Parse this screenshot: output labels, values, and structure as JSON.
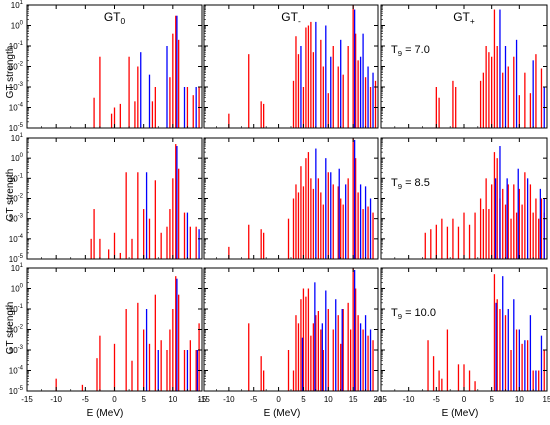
{
  "figure": {
    "ylabel": "GT strength",
    "xlabel": "E (MeV)",
    "column_titles": [
      {
        "base": "GT",
        "sub": "0"
      },
      {
        "base": "GT",
        "sub": "-"
      },
      {
        "base": "GT",
        "sub": "+"
      }
    ],
    "row_labels": [
      {
        "base": "T",
        "sub": "9",
        "rest": " = 7.0"
      },
      {
        "base": "T",
        "sub": "9",
        "rest": " = 8.5"
      },
      {
        "base": "T",
        "sub": "9",
        "rest": " = 10.0"
      }
    ],
    "y_tick_labels": [
      {
        "base": "10",
        "exp": "-5"
      },
      {
        "base": "10",
        "exp": "-4"
      },
      {
        "base": "10",
        "exp": "-3"
      },
      {
        "base": "10",
        "exp": "-2"
      },
      {
        "base": "10",
        "exp": "-1"
      },
      {
        "base": "10",
        "exp": "0"
      },
      {
        "base": "10",
        "exp": "1"
      }
    ],
    "x_tick_labels": [
      [
        "-15",
        "-10",
        "-5",
        "0",
        "5",
        "10",
        "15"
      ],
      [
        "-15",
        "-10",
        "-5",
        "0",
        "5",
        "10",
        "15",
        "20"
      ],
      [
        "-15",
        "-10",
        "-5",
        "0",
        "5",
        "10",
        "15"
      ]
    ],
    "colors": {
      "red": "#ff0000",
      "blue": "#0000ff",
      "axis": "#000000"
    }
  },
  "chart_data": [
    {
      "type": "bar",
      "panel": "GT0 T9=7.0",
      "xlim": [
        -15,
        15
      ],
      "ylim": [
        1e-05,
        10
      ],
      "yscale": "log",
      "red": [
        [
          -3.5,
          0.0003
        ],
        [
          -2.5,
          0.03
        ],
        [
          -0.5,
          5e-05
        ],
        [
          0,
          0.0001
        ],
        [
          1,
          0.00015
        ],
        [
          2.5,
          0.03
        ],
        [
          3.5,
          0.0002
        ],
        [
          4,
          0.01
        ],
        [
          6.5,
          0.0002
        ],
        [
          7,
          0.001
        ],
        [
          9.5,
          0.003
        ],
        [
          10,
          0.4
        ],
        [
          10.5,
          3
        ],
        [
          11,
          0.2
        ],
        [
          12.5,
          0.001
        ],
        [
          13.5,
          0.0004
        ],
        [
          14.5,
          0.001
        ]
      ],
      "blue": [
        [
          4.5,
          0.05
        ],
        [
          6,
          0.004
        ],
        [
          9,
          0.1
        ],
        [
          10.7,
          3
        ],
        [
          12,
          0.001
        ],
        [
          14,
          0.001
        ]
      ]
    },
    {
      "type": "bar",
      "panel": "GT- T9=7.0",
      "xlim": [
        -15,
        20
      ],
      "ylim": [
        1e-05,
        10
      ],
      "yscale": "log",
      "red": [
        [
          -10,
          5e-05
        ],
        [
          -6,
          0.04
        ],
        [
          -3.5,
          0.0002
        ],
        [
          -3,
          0.00015
        ],
        [
          3,
          0.002
        ],
        [
          3.5,
          0.3
        ],
        [
          4,
          0.04
        ],
        [
          5,
          0.001
        ],
        [
          5.5,
          0.8
        ],
        [
          6,
          1
        ],
        [
          6.5,
          1.5
        ],
        [
          7,
          0.05
        ],
        [
          8.5,
          0.2
        ],
        [
          9,
          0.01
        ],
        [
          10,
          0.0005
        ],
        [
          11,
          0.1
        ],
        [
          12,
          0.01
        ],
        [
          13,
          0.004
        ],
        [
          14,
          0.1
        ],
        [
          15,
          10
        ],
        [
          15.5,
          0.4
        ],
        [
          16,
          0.02
        ],
        [
          17.5,
          0.003
        ],
        [
          18.5,
          0.001
        ],
        [
          19.5,
          0.002
        ]
      ],
      "blue": [
        [
          4.5,
          0.1
        ],
        [
          7.5,
          1.5
        ],
        [
          9.5,
          1
        ],
        [
          10.5,
          0.03
        ],
        [
          12.5,
          0.2
        ],
        [
          15.3,
          6
        ],
        [
          16.5,
          0.03
        ],
        [
          17,
          0.4
        ],
        [
          18,
          0.01
        ],
        [
          19,
          0.005
        ]
      ]
    },
    {
      "type": "bar",
      "panel": "GT+ T9=7.0",
      "xlim": [
        -15,
        15
      ],
      "ylim": [
        1e-05,
        10
      ],
      "yscale": "log",
      "red": [
        [
          -5,
          0.001
        ],
        [
          -4.5,
          0.0003
        ],
        [
          -2,
          0.002
        ],
        [
          -1.5,
          0.001
        ],
        [
          3,
          0.002
        ],
        [
          3.5,
          0.005
        ],
        [
          4,
          0.1
        ],
        [
          4.5,
          0.05
        ],
        [
          5,
          0.03
        ],
        [
          5.5,
          6
        ],
        [
          6,
          0.1
        ],
        [
          7,
          0.005
        ],
        [
          8,
          0.01
        ],
        [
          9,
          0.03
        ],
        [
          10,
          0.0004
        ],
        [
          11,
          0.005
        ],
        [
          12,
          0.0005
        ],
        [
          13,
          0.04
        ],
        [
          14,
          0.008
        ]
      ],
      "blue": [
        [
          6.5,
          6
        ],
        [
          7.5,
          0.1
        ],
        [
          9.5,
          0.2
        ],
        [
          12.5,
          0.02
        ],
        [
          14.5,
          0.001
        ]
      ]
    },
    {
      "type": "bar",
      "panel": "GT0 T9=8.5",
      "xlim": [
        -15,
        15
      ],
      "ylim": [
        1e-05,
        10
      ],
      "yscale": "log",
      "red": [
        [
          -4,
          0.0001
        ],
        [
          -3.5,
          0.003
        ],
        [
          -2.5,
          0.0001
        ],
        [
          -1,
          3e-05
        ],
        [
          0,
          0.0002
        ],
        [
          1,
          2e-05
        ],
        [
          2,
          0.2
        ],
        [
          3,
          0.0001
        ],
        [
          4,
          0.2
        ],
        [
          5,
          0.003
        ],
        [
          6,
          0.001
        ],
        [
          7,
          0.08
        ],
        [
          8,
          0.0002
        ],
        [
          9,
          0.0004
        ],
        [
          9.5,
          0.003
        ],
        [
          10,
          0.1
        ],
        [
          10.5,
          5
        ],
        [
          11,
          0.3
        ],
        [
          12,
          0.002
        ],
        [
          13,
          0.0004
        ],
        [
          14,
          0.0004
        ]
      ],
      "blue": [
        [
          5.5,
          0.2
        ],
        [
          10.7,
          4
        ],
        [
          12.5,
          0.002
        ],
        [
          14.5,
          0.0003
        ]
      ]
    },
    {
      "type": "bar",
      "panel": "GT- T9=8.5",
      "xlim": [
        -15,
        20
      ],
      "ylim": [
        1e-05,
        10
      ],
      "yscale": "log",
      "red": [
        [
          -10,
          4e-05
        ],
        [
          -6,
          0.0005
        ],
        [
          -3.5,
          0.0003
        ],
        [
          -3,
          0.0002
        ],
        [
          2,
          0.001
        ],
        [
          3,
          0.01
        ],
        [
          3.5,
          0.05
        ],
        [
          4,
          0.02
        ],
        [
          4.5,
          0.4
        ],
        [
          5,
          0.04
        ],
        [
          5.5,
          1
        ],
        [
          6,
          2
        ],
        [
          6.5,
          0.1
        ],
        [
          7,
          0.03
        ],
        [
          8,
          0.1
        ],
        [
          8.5,
          0.02
        ],
        [
          9,
          0.005
        ],
        [
          10,
          0.2
        ],
        [
          11,
          0.05
        ],
        [
          12,
          0.04
        ],
        [
          12.5,
          0.01
        ],
        [
          13,
          0.005
        ],
        [
          14,
          0.1
        ],
        [
          15,
          10
        ],
        [
          15.5,
          1
        ],
        [
          16,
          0.02
        ],
        [
          17,
          0.003
        ],
        [
          18,
          0.004
        ],
        [
          19,
          0.002
        ]
      ],
      "blue": [
        [
          7.5,
          3
        ],
        [
          9.5,
          1
        ],
        [
          10.5,
          0.2
        ],
        [
          12.2,
          0.3
        ],
        [
          13.5,
          0.05
        ],
        [
          15.3,
          8
        ],
        [
          16.5,
          0.05
        ],
        [
          17.5,
          0.04
        ],
        [
          18.5,
          0.01
        ]
      ]
    },
    {
      "type": "bar",
      "panel": "GT+ T9=8.5",
      "xlim": [
        -15,
        15
      ],
      "ylim": [
        1e-05,
        10
      ],
      "yscale": "log",
      "red": [
        [
          -7,
          0.0002
        ],
        [
          -6,
          0.0003
        ],
        [
          -5,
          0.0005
        ],
        [
          -4,
          0.001
        ],
        [
          -3,
          0.0004
        ],
        [
          -2,
          0.001
        ],
        [
          -1,
          0.0004
        ],
        [
          0,
          0.002
        ],
        [
          1,
          0.0005
        ],
        [
          2,
          0.002
        ],
        [
          3,
          0.01
        ],
        [
          3.5,
          0.003
        ],
        [
          4,
          0.1
        ],
        [
          4.5,
          0.003
        ],
        [
          5,
          0.05
        ],
        [
          5.5,
          2
        ],
        [
          6,
          1
        ],
        [
          6.5,
          0.01
        ],
        [
          7,
          0.03
        ],
        [
          7.5,
          0.005
        ],
        [
          8,
          0.05
        ],
        [
          8.5,
          0.001
        ],
        [
          9,
          0.05
        ],
        [
          9.5,
          0.002
        ],
        [
          10,
          0.03
        ],
        [
          10.5,
          0.005
        ],
        [
          11,
          0.2
        ],
        [
          12,
          0.05
        ],
        [
          12.5,
          0.002
        ],
        [
          13,
          0.01
        ],
        [
          13.5,
          0.001
        ],
        [
          14,
          0.01
        ],
        [
          14.5,
          0.002
        ]
      ],
      "blue": [
        [
          5.7,
          0.1
        ],
        [
          6.5,
          4
        ],
        [
          7.8,
          0.1
        ],
        [
          9.8,
          0.3
        ],
        [
          11.5,
          0.1
        ],
        [
          13.8,
          0.03
        ],
        [
          14.5,
          0.01
        ]
      ]
    },
    {
      "type": "bar",
      "panel": "GT0 T9=10.0",
      "xlim": [
        -15,
        15
      ],
      "ylim": [
        1e-05,
        10
      ],
      "yscale": "log",
      "red": [
        [
          -10,
          4e-05
        ],
        [
          -5.5,
          2e-05
        ],
        [
          -3,
          0.0004
        ],
        [
          -2.5,
          0.005
        ],
        [
          0,
          0.002
        ],
        [
          2,
          0.1
        ],
        [
          3,
          0.0003
        ],
        [
          4,
          0.2
        ],
        [
          5,
          0.01
        ],
        [
          6,
          0.002
        ],
        [
          7,
          0.5
        ],
        [
          8,
          0.003
        ],
        [
          9,
          0.001
        ],
        [
          9.5,
          0.01
        ],
        [
          10,
          0.1
        ],
        [
          10.5,
          4
        ],
        [
          11,
          0.5
        ],
        [
          12,
          0.001
        ],
        [
          13,
          0.003
        ],
        [
          14,
          0.001
        ],
        [
          14.5,
          0.02
        ]
      ],
      "blue": [
        [
          5.5,
          0.1
        ],
        [
          7.5,
          0.001
        ],
        [
          10.7,
          3
        ],
        [
          12.5,
          0.001
        ],
        [
          14.2,
          0.001
        ]
      ]
    },
    {
      "type": "bar",
      "panel": "GT- T9=10.0",
      "xlim": [
        -15,
        20
      ],
      "ylim": [
        1e-05,
        10
      ],
      "yscale": "log",
      "red": [
        [
          -6,
          0.02
        ],
        [
          -3.5,
          0.0005
        ],
        [
          -3,
          0.0001
        ],
        [
          2,
          0.001
        ],
        [
          3,
          0.0001
        ],
        [
          3.5,
          0.05
        ],
        [
          4,
          0.02
        ],
        [
          4.5,
          0.3
        ],
        [
          5,
          1
        ],
        [
          5.5,
          0.4
        ],
        [
          6,
          1
        ],
        [
          6.5,
          0.005
        ],
        [
          7,
          0.02
        ],
        [
          7.5,
          0.05
        ],
        [
          8,
          0.08
        ],
        [
          8.5,
          0.01
        ],
        [
          9,
          0.001
        ],
        [
          10,
          0.1
        ],
        [
          11,
          0.01
        ],
        [
          12,
          0.05
        ],
        [
          12.5,
          0.002
        ],
        [
          13,
          0.1
        ],
        [
          14,
          0.2
        ],
        [
          14.5,
          0.01
        ],
        [
          15,
          10
        ],
        [
          15.5,
          1
        ],
        [
          16,
          0.05
        ],
        [
          17,
          0.01
        ],
        [
          18,
          0.005
        ],
        [
          19,
          0.003
        ]
      ],
      "blue": [
        [
          4.8,
          0.004
        ],
        [
          7.3,
          2
        ],
        [
          8.8,
          0.02
        ],
        [
          9.5,
          0.8
        ],
        [
          11.5,
          0.3
        ],
        [
          12.8,
          0.1
        ],
        [
          15.3,
          8
        ],
        [
          16.5,
          0.02
        ],
        [
          17.5,
          0.05
        ],
        [
          18.5,
          0.01
        ]
      ]
    },
    {
      "type": "bar",
      "panel": "GT+ T9=10.0",
      "xlim": [
        -15,
        15
      ],
      "ylim": [
        1e-05,
        10
      ],
      "yscale": "log",
      "red": [
        [
          -6.5,
          0.003
        ],
        [
          -5.5,
          0.0005
        ],
        [
          -4.5,
          0.0001
        ],
        [
          -4,
          4e-05
        ],
        [
          -3,
          0.01
        ],
        [
          -1,
          0.0002
        ],
        [
          0,
          0.0002
        ],
        [
          1,
          0.0001
        ],
        [
          2,
          3e-05
        ],
        [
          5.5,
          5
        ],
        [
          6,
          0.3
        ],
        [
          6.5,
          0.1
        ],
        [
          7.5,
          0.05
        ],
        [
          8.5,
          0.001
        ],
        [
          9.5,
          0.01
        ],
        [
          10.5,
          0.002
        ],
        [
          11.5,
          0.003
        ],
        [
          12.5,
          0.0001
        ],
        [
          13.5,
          0.0001
        ],
        [
          14.5,
          0.001
        ]
      ],
      "blue": [
        [
          5.8,
          0.2
        ],
        [
          7,
          4
        ],
        [
          8,
          0.1
        ],
        [
          9,
          0.3
        ],
        [
          10,
          0.01
        ],
        [
          11,
          0.003
        ],
        [
          12,
          0.05
        ],
        [
          13,
          0.0001
        ],
        [
          14,
          0.005
        ]
      ]
    }
  ]
}
